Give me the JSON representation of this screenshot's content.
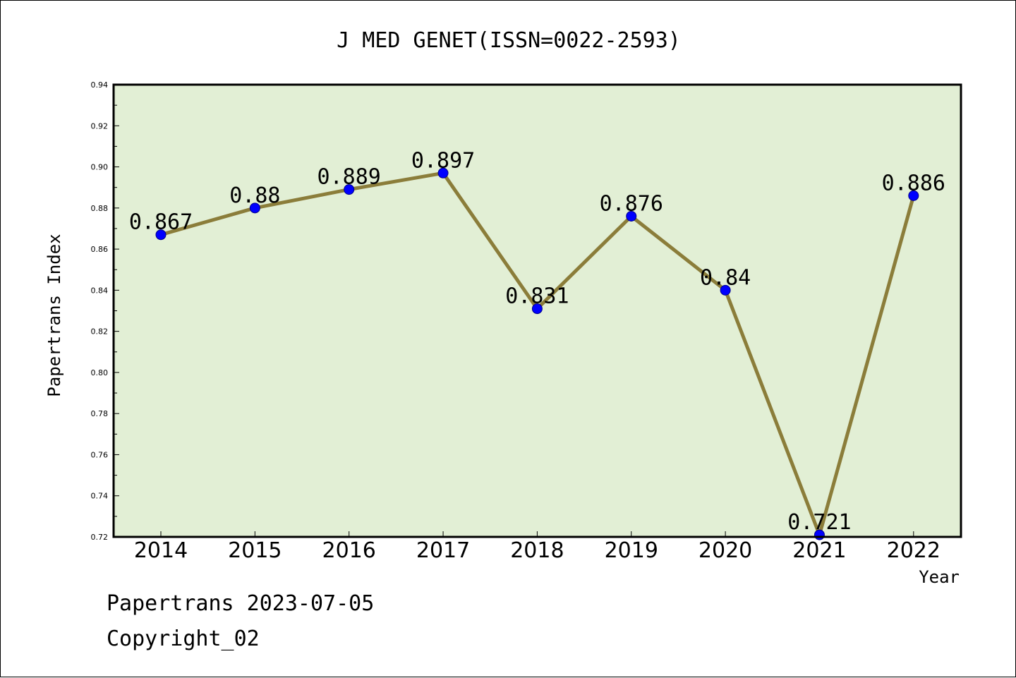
{
  "chart_data": {
    "type": "line",
    "title": "J MED GENET(ISSN=0022-2593)",
    "xlabel": "Year",
    "ylabel": "Papertrans Index",
    "categories": [
      "2014",
      "2015",
      "2016",
      "2017",
      "2018",
      "2019",
      "2020",
      "2021",
      "2022"
    ],
    "series": [
      {
        "values": [
          0.867,
          0.88,
          0.889,
          0.897,
          0.831,
          0.876,
          0.84,
          0.721,
          0.886
        ]
      }
    ],
    "data_labels": [
      "0.867",
      "0.88",
      "0.889",
      "0.897",
      "0.831",
      "0.876",
      "0.84",
      "0.721",
      "0.886"
    ],
    "ylim": [
      0.72,
      0.94
    ],
    "yticks": [
      "0.72",
      "0.74",
      "0.76",
      "0.78",
      "0.80",
      "0.82",
      "0.84",
      "0.86",
      "0.88",
      "0.90",
      "0.92",
      "0.94"
    ],
    "grid": false,
    "colors": {
      "plot_background": "#e2efd5",
      "line": "#8b7d3a",
      "marker": "#0000ff"
    }
  },
  "footer": {
    "line1": "Papertrans 2023-07-05",
    "line2": "Copyright_02"
  }
}
